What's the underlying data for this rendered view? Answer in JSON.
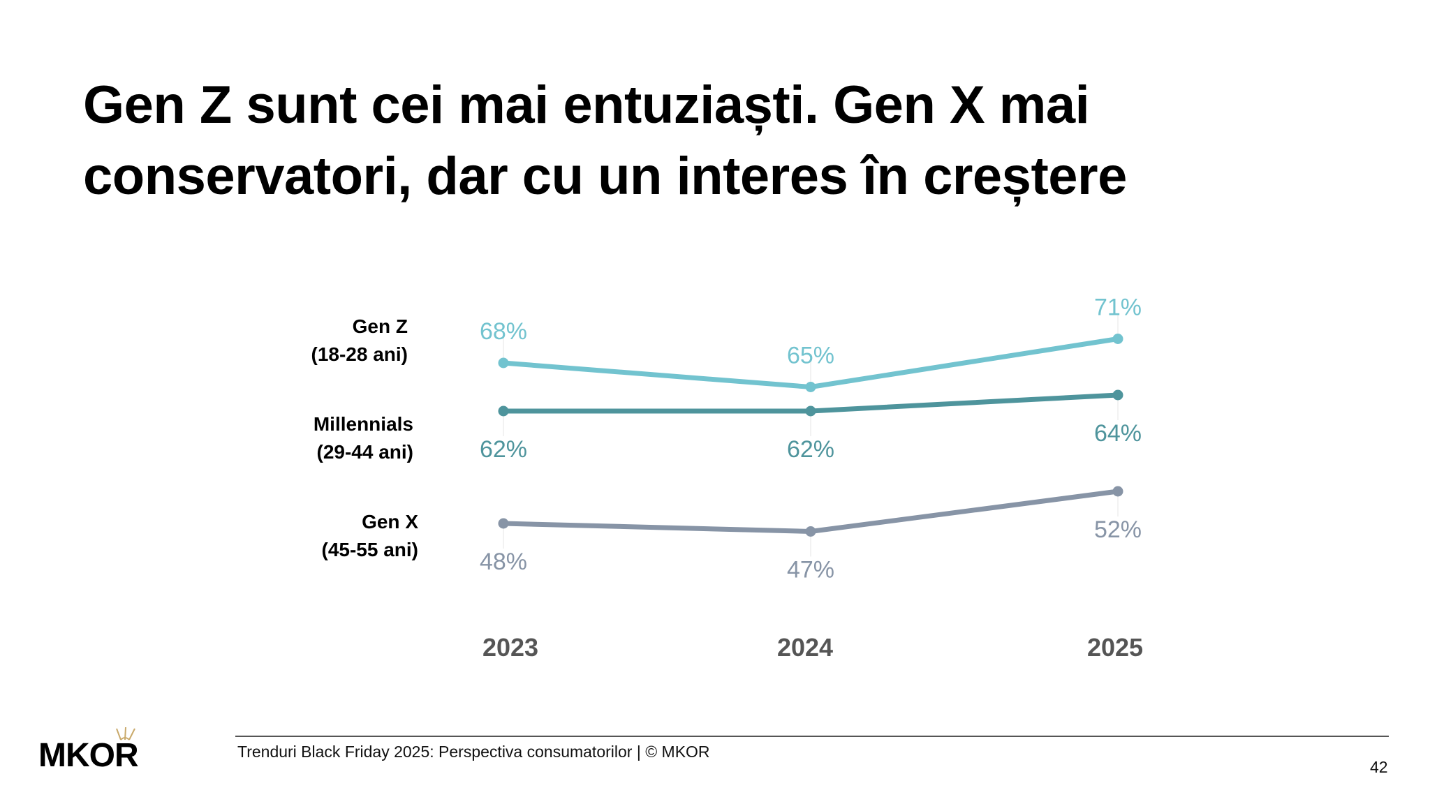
{
  "title_lines": [
    "Gen Z sunt cei mai entuziaști. Gen X mai",
    "conservatori, dar cu un interes în creștere"
  ],
  "chart_data": {
    "type": "line",
    "categories": [
      "2023",
      "2024",
      "2025"
    ],
    "series": [
      {
        "name": "Gen Z",
        "subtitle": "(18-28 ani)",
        "values": [
          68,
          65,
          71
        ],
        "labels": [
          "68%",
          "65%",
          "71%"
        ],
        "color": "#72c3cf",
        "label_position": "above"
      },
      {
        "name": "Millennials",
        "subtitle": "(29-44 ani)",
        "values": [
          62,
          62,
          64
        ],
        "labels": [
          "62%",
          "62%",
          "64%"
        ],
        "color": "#4e949c",
        "label_position": "below"
      },
      {
        "name": "Gen X",
        "subtitle": "(45-55 ani)",
        "values": [
          48,
          47,
          52
        ],
        "labels": [
          "48%",
          "47%",
          "52%"
        ],
        "color": "#8794a6",
        "label_position": "below"
      }
    ],
    "xlabel": "",
    "ylabel": "",
    "grid": false,
    "legend": "left"
  },
  "footer": {
    "text": "Trenduri Black Friday 2025: Perspectiva consumatorilor | © MKOR",
    "page_number": "42",
    "logo_text": "MKOR"
  }
}
